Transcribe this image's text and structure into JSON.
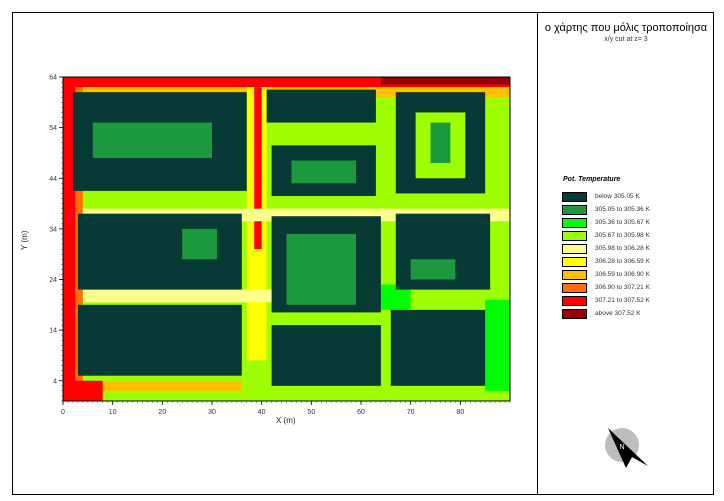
{
  "chart_data": {
    "type": "heatmap",
    "title": "ο χάρτης που μόλις τροποποίησα",
    "subtitle": "x/y cut at z= 3",
    "xlabel": "X (m)",
    "ylabel": "Y (m)",
    "xlim": [
      0,
      90
    ],
    "ylim": [
      0,
      64
    ],
    "x_ticks": [
      "0",
      "10",
      "20",
      "30",
      "40",
      "50",
      "60",
      "70",
      "80"
    ],
    "y_ticks": [
      "4",
      "14",
      "24",
      "34",
      "44",
      "54",
      "64"
    ],
    "legend_title": "Pot. Temperature",
    "legend_items": [
      {
        "label": "below 305.05 K",
        "color": "#073935"
      },
      {
        "label": "305.05 to 305.36 K",
        "color": "#1a9a3c"
      },
      {
        "label": "305.36 to 305.67 K",
        "color": "#00ff00"
      },
      {
        "label": "305.67 to 305.98 K",
        "color": "#9dff00"
      },
      {
        "label": "305.98 to 306.28 K",
        "color": "#ffff8c"
      },
      {
        "label": "306.28 to 306.59 K",
        "color": "#ffff00"
      },
      {
        "label": "306.59 to 306.90 K",
        "color": "#ffc000"
      },
      {
        "label": "306.90 to 307.21 K",
        "color": "#ff7000"
      },
      {
        "label": "307.21 to 307.52 K",
        "color": "#ff0000"
      },
      {
        "label": "above 307.52 K",
        "color": "#990000"
      }
    ],
    "background_class": 3,
    "regions": [
      {
        "desc": "hot west edge",
        "x": [
          0,
          2.5
        ],
        "y": [
          0,
          64
        ],
        "class": 8
      },
      {
        "desc": "warm west band",
        "x": [
          2.5,
          4
        ],
        "y": [
          0,
          64
        ],
        "class": 7
      },
      {
        "desc": "hot north edge",
        "x": [
          0,
          90
        ],
        "y": [
          62,
          64
        ],
        "class": 8
      },
      {
        "desc": "very hot north-east corner",
        "x": [
          64,
          90
        ],
        "y": [
          62.5,
          64
        ],
        "class": 9
      },
      {
        "desc": "warm north band",
        "x": [
          4,
          90
        ],
        "y": [
          60,
          62
        ],
        "class": 6
      },
      {
        "desc": "warm south-west band",
        "x": [
          4,
          36
        ],
        "y": [
          2,
          4
        ],
        "class": 6
      },
      {
        "desc": "hot south-west corner",
        "x": [
          0,
          8
        ],
        "y": [
          0,
          4
        ],
        "class": 8
      },
      {
        "desc": "street west of centre",
        "x": [
          37,
          41
        ],
        "y": [
          8,
          62
        ],
        "class": 5
      },
      {
        "desc": "street hot strip",
        "x": [
          38.5,
          40
        ],
        "y": [
          30,
          62
        ],
        "class": 8
      },
      {
        "desc": "horizontal street north",
        "x": [
          4,
          90
        ],
        "y": [
          35.5,
          38
        ],
        "class": 4
      },
      {
        "desc": "horizontal street south",
        "x": [
          4,
          65
        ],
        "y": [
          19.5,
          22
        ],
        "class": 4
      },
      {
        "desc": "east cool strip",
        "x": [
          85,
          90
        ],
        "y": [
          0,
          20
        ],
        "class": 2
      },
      {
        "desc": "cool patch",
        "x": [
          62,
          70
        ],
        "y": [
          18,
          23
        ],
        "class": 2
      },
      {
        "desc": "south green strip",
        "x": [
          40,
          90
        ],
        "y": [
          0,
          2
        ],
        "class": 3
      },
      {
        "desc": "building NW",
        "x": [
          2,
          37
        ],
        "y": [
          41.5,
          61
        ],
        "class": 0
      },
      {
        "desc": "building NW trees",
        "x": [
          6,
          30
        ],
        "y": [
          48,
          55
        ],
        "class": 1
      },
      {
        "desc": "building W",
        "x": [
          3,
          36
        ],
        "y": [
          22,
          37
        ],
        "class": 0
      },
      {
        "desc": "building W trees",
        "x": [
          24,
          31
        ],
        "y": [
          28,
          34
        ],
        "class": 1
      },
      {
        "desc": "building SW",
        "x": [
          3,
          36
        ],
        "y": [
          5,
          19
        ],
        "class": 0
      },
      {
        "desc": "building N-centre",
        "x": [
          41,
          63
        ],
        "y": [
          55,
          61.5
        ],
        "class": 0
      },
      {
        "desc": "building centre",
        "x": [
          42,
          63
        ],
        "y": [
          40.5,
          50.5
        ],
        "class": 0
      },
      {
        "desc": "centre trees",
        "x": [
          46,
          59
        ],
        "y": [
          43,
          47.5
        ],
        "class": 1
      },
      {
        "desc": "building centre-south",
        "x": [
          42,
          64
        ],
        "y": [
          17.5,
          36.5
        ],
        "class": 0
      },
      {
        "desc": "centre-south trees",
        "x": [
          45,
          59
        ],
        "y": [
          19,
          33
        ],
        "class": 1
      },
      {
        "desc": "building NE",
        "x": [
          67,
          85
        ],
        "y": [
          41,
          61
        ],
        "class": 0
      },
      {
        "desc": "NE green trees",
        "x": [
          71,
          81
        ],
        "y": [
          44,
          57
        ],
        "class": 3
      },
      {
        "desc": "NE dark trees",
        "x": [
          74,
          78
        ],
        "y": [
          47,
          55
        ],
        "class": 1
      },
      {
        "desc": "building E",
        "x": [
          67,
          86
        ],
        "y": [
          22,
          37
        ],
        "class": 0
      },
      {
        "desc": "E trees",
        "x": [
          70,
          79
        ],
        "y": [
          24,
          28
        ],
        "class": 1
      },
      {
        "desc": "building S-centre",
        "x": [
          42,
          64
        ],
        "y": [
          3,
          15
        ],
        "class": 0
      },
      {
        "desc": "building SE",
        "x": [
          66,
          85
        ],
        "y": [
          3,
          18
        ],
        "class": 0
      }
    ]
  },
  "compass": {
    "label": "N",
    "icon": "north-arrow-icon"
  }
}
